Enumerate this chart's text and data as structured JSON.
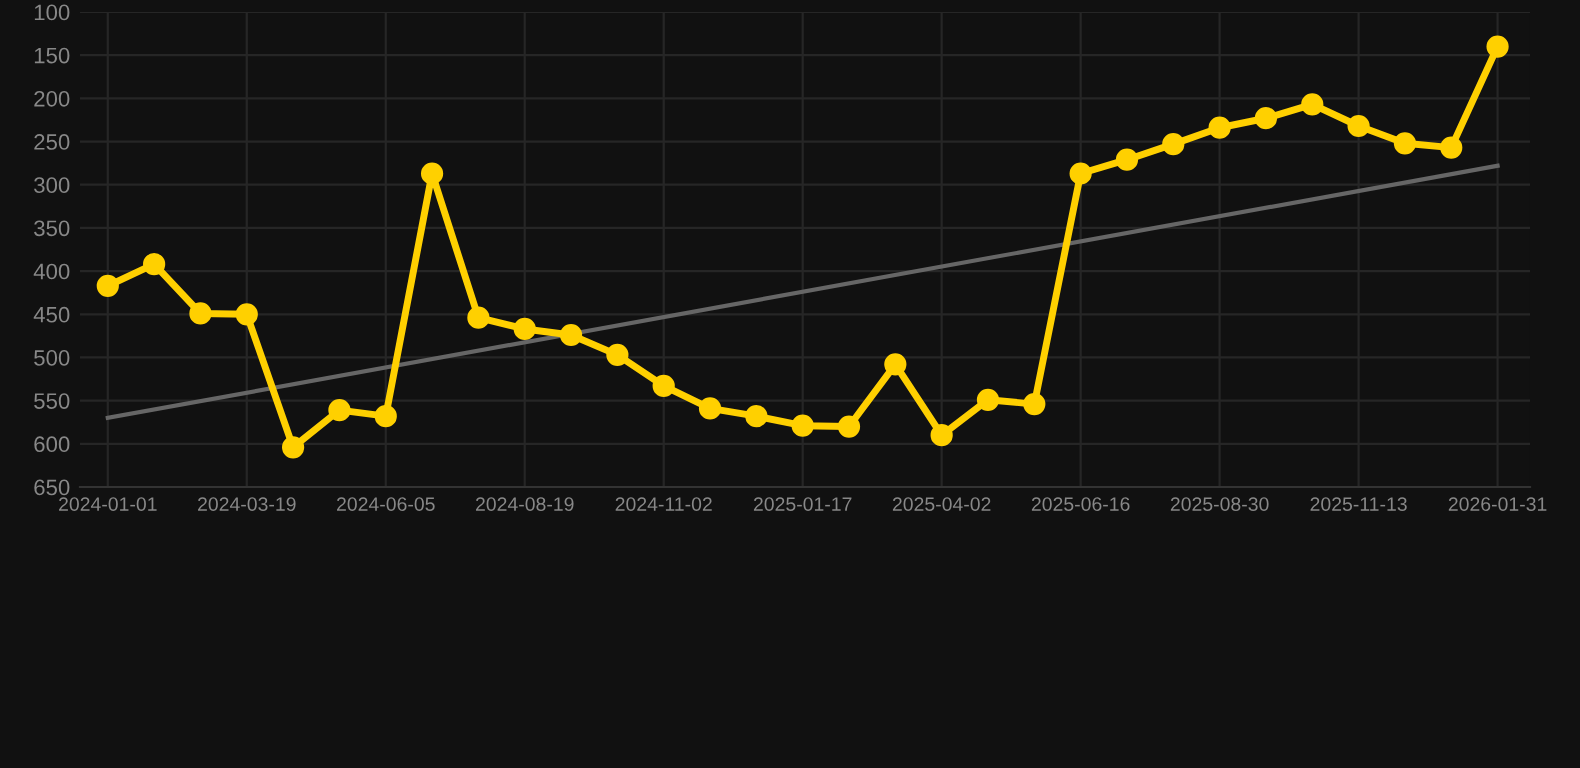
{
  "chart_data": {
    "type": "line",
    "categories": [
      "2024-01-01",
      null,
      null,
      "2024-03-19",
      null,
      null,
      "2024-06-05",
      null,
      null,
      "2024-08-19",
      null,
      null,
      "2024-11-02",
      null,
      null,
      "2025-01-17",
      null,
      null,
      "2025-04-02",
      null,
      null,
      "2025-06-16",
      null,
      null,
      "2025-08-30",
      null,
      null,
      "2025-11-13",
      null,
      null,
      "2026-01-31"
    ],
    "series": [
      {
        "color": "#ffd000",
        "marker": "circle",
        "values": [
          417,
          392,
          449,
          450,
          604,
          561,
          568,
          287,
          454,
          467,
          474,
          497,
          533,
          559,
          568,
          579,
          580,
          508,
          590,
          549,
          554,
          287,
          271,
          253,
          234,
          223,
          207,
          232,
          252,
          257,
          140
        ]
      },
      {
        "color": "#666666",
        "marker": "none",
        "values": [
          570,
          null,
          null,
          null,
          null,
          null,
          null,
          null,
          null,
          null,
          null,
          null,
          null,
          null,
          null,
          null,
          null,
          null,
          null,
          null,
          null,
          null,
          null,
          null,
          null,
          null,
          null,
          null,
          null,
          null,
          278
        ]
      }
    ],
    "ylim": [
      650,
      100
    ],
    "yticks": [
      100,
      150,
      200,
      250,
      300,
      350,
      400,
      450,
      500,
      550,
      600,
      650
    ],
    "grid": true
  }
}
